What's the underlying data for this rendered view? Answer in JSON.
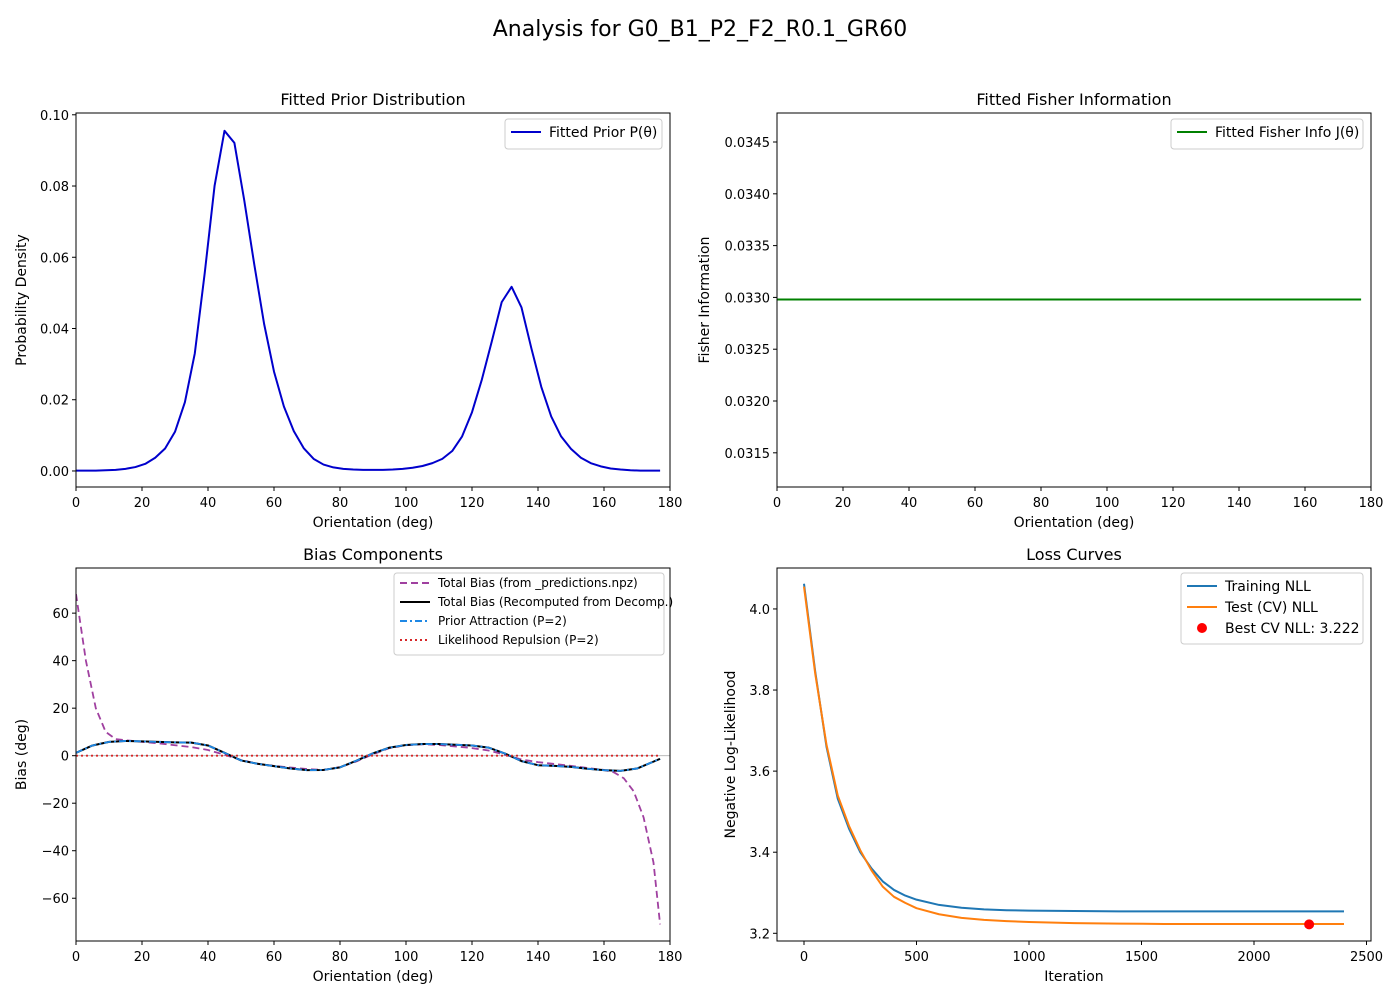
{
  "figure_title": "Analysis for G0_B1_P2_F2_R0.1_GR60",
  "chart_data": [
    {
      "id": "prior",
      "type": "line",
      "title": "Fitted Prior Distribution",
      "xlabel": "Orientation (deg)",
      "ylabel": "Probability Density",
      "xlim": [
        0,
        180
      ],
      "ylim": [
        -0.0045,
        0.1005
      ],
      "xticks": [
        0,
        20,
        40,
        60,
        80,
        100,
        120,
        140,
        160,
        180
      ],
      "yticks": [
        0.0,
        0.02,
        0.04,
        0.06,
        0.08,
        0.1
      ],
      "ytick_labels": [
        "0.00",
        "0.02",
        "0.04",
        "0.06",
        "0.08",
        "0.10"
      ],
      "grid": false,
      "legend_position": "top-right",
      "series": [
        {
          "name": "Fitted Prior P(θ)",
          "color": "#0000cc",
          "style": "solid",
          "x": [
            0,
            3,
            6,
            9,
            12,
            15,
            18,
            21,
            24,
            27,
            30,
            33,
            36,
            39,
            42,
            45,
            48,
            51,
            54,
            57,
            60,
            63,
            66,
            69,
            72,
            75,
            78,
            81,
            84,
            87,
            90,
            93,
            96,
            99,
            102,
            105,
            108,
            111,
            114,
            117,
            120,
            123,
            126,
            129,
            132,
            135,
            138,
            141,
            144,
            147,
            150,
            153,
            156,
            159,
            162,
            165,
            168,
            171,
            174,
            177
          ],
          "y": [
            0.0001,
            0.0001,
            0.0001,
            0.0002,
            0.0003,
            0.0006,
            0.0011,
            0.002,
            0.0037,
            0.0063,
            0.011,
            0.0193,
            0.033,
            0.0555,
            0.0801,
            0.0955,
            0.0921,
            0.0759,
            0.0581,
            0.0413,
            0.0279,
            0.0181,
            0.0112,
            0.0064,
            0.0034,
            0.0018,
            0.001,
            0.0006,
            0.0004,
            0.0003,
            0.0003,
            0.0003,
            0.0004,
            0.0006,
            0.0009,
            0.0014,
            0.0022,
            0.0034,
            0.0056,
            0.0097,
            0.0165,
            0.0257,
            0.0364,
            0.0474,
            0.0517,
            0.0459,
            0.0344,
            0.0236,
            0.0153,
            0.0097,
            0.0062,
            0.0037,
            0.0022,
            0.0013,
            0.0007,
            0.0004,
            0.0002,
            0.0001,
            0.0001,
            0.0001
          ]
        }
      ]
    },
    {
      "id": "fisher",
      "type": "line",
      "title": "Fitted Fisher Information",
      "xlabel": "Orientation (deg)",
      "ylabel": "Fisher Information",
      "xlim": [
        0,
        180
      ],
      "ylim": [
        0.03117,
        0.03478
      ],
      "xticks": [
        0,
        20,
        40,
        60,
        80,
        100,
        120,
        140,
        160,
        180
      ],
      "yticks": [
        0.0315,
        0.032,
        0.0325,
        0.033,
        0.0335,
        0.034,
        0.0345
      ],
      "ytick_labels": [
        "0.0315",
        "0.0320",
        "0.0325",
        "0.0330",
        "0.0335",
        "0.0340",
        "0.0345"
      ],
      "grid": false,
      "legend_position": "top-right",
      "series": [
        {
          "name": "Fitted Fisher Info J(θ)",
          "color": "#008000",
          "style": "solid",
          "x": [
            0,
            177
          ],
          "y": [
            0.03298,
            0.03298
          ]
        }
      ]
    },
    {
      "id": "bias",
      "type": "line",
      "title": "Bias Components",
      "xlabel": "Orientation (deg)",
      "ylabel": "Bias (deg)",
      "xlim": [
        0,
        180
      ],
      "ylim": [
        -78,
        79
      ],
      "xticks": [
        0,
        20,
        40,
        60,
        80,
        100,
        120,
        140,
        160,
        180
      ],
      "yticks": [
        -60,
        -40,
        -20,
        0,
        20,
        40,
        60
      ],
      "ytick_labels": [
        "−60",
        "−40",
        "−20",
        "0",
        "20",
        "40",
        "60"
      ],
      "grid": false,
      "zero_line": true,
      "legend_position": "top-right",
      "legend_font_small": true,
      "series": [
        {
          "name": "Total Bias (from _predictions.npz)",
          "color": "#a040a0",
          "style": "dashed",
          "x": [
            0,
            3,
            6,
            9,
            12,
            15,
            20,
            25,
            30,
            35,
            40,
            45,
            50,
            55,
            60,
            65,
            70,
            75,
            80,
            85,
            90,
            95,
            100,
            105,
            110,
            115,
            120,
            125,
            130,
            135,
            140,
            145,
            150,
            155,
            160,
            163,
            166,
            169,
            172,
            175,
            177
          ],
          "y": [
            68,
            40,
            20,
            10,
            7,
            6.5,
            5.8,
            5.2,
            4.4,
            3.6,
            2.4,
            0.4,
            -1.8,
            -3.4,
            -4.3,
            -5,
            -5.6,
            -6,
            -4.8,
            -2.4,
            0.6,
            3.2,
            4.4,
            4.8,
            4.5,
            3.9,
            3.2,
            2.2,
            0.4,
            -1.6,
            -2.7,
            -3.5,
            -4.3,
            -5.2,
            -6,
            -7,
            -9.5,
            -15,
            -26,
            -45,
            -71
          ]
        },
        {
          "name": "Total Bias (Recomputed from Decomp.)",
          "color": "#000000",
          "style": "solid",
          "x": [
            0,
            5,
            10,
            15,
            20,
            25,
            30,
            35,
            40,
            45,
            50,
            55,
            60,
            65,
            70,
            75,
            80,
            85,
            90,
            95,
            100,
            105,
            110,
            115,
            120,
            125,
            130,
            135,
            140,
            145,
            150,
            155,
            160,
            165,
            170,
            175,
            177
          ],
          "y": [
            1.2,
            4.3,
            5.8,
            6.2,
            6,
            5.8,
            5.6,
            5.5,
            4.3,
            1.2,
            -2,
            -3.4,
            -4.4,
            -5.4,
            -6.1,
            -6,
            -4.9,
            -2.1,
            1,
            3.4,
            4.5,
            4.9,
            4.9,
            4.6,
            4.3,
            3.4,
            0.9,
            -2.3,
            -4,
            -4.3,
            -4.7,
            -5.5,
            -6.1,
            -6.4,
            -5.4,
            -2.5,
            -1.3
          ]
        },
        {
          "name": "Prior Attraction (P=2)",
          "color": "#1e88e5",
          "style": "dashdot",
          "x": [
            0,
            5,
            10,
            15,
            20,
            25,
            30,
            35,
            40,
            45,
            50,
            55,
            60,
            65,
            70,
            75,
            80,
            85,
            90,
            95,
            100,
            105,
            110,
            115,
            120,
            125,
            130,
            135,
            140,
            145,
            150,
            155,
            160,
            165,
            170,
            175,
            177
          ],
          "y": [
            1.2,
            4.3,
            5.8,
            6.2,
            6,
            5.8,
            5.6,
            5.5,
            4.3,
            1.2,
            -2,
            -3.4,
            -4.4,
            -5.4,
            -6.1,
            -6,
            -4.9,
            -2.1,
            1,
            3.4,
            4.5,
            4.9,
            4.9,
            4.6,
            4.3,
            3.4,
            0.9,
            -2.3,
            -4,
            -4.3,
            -4.7,
            -5.5,
            -6.1,
            -6.4,
            -5.4,
            -2.5,
            -1.3
          ]
        },
        {
          "name": "Likelihood Repulsion (P=2)",
          "color": "#d62728",
          "style": "dotted",
          "x": [
            0,
            177
          ],
          "y": [
            0,
            0
          ]
        }
      ]
    },
    {
      "id": "loss",
      "type": "line",
      "title": "Loss Curves",
      "xlabel": "Iteration",
      "ylabel": "Negative Log-Likelihood",
      "xlim": [
        -120,
        2520
      ],
      "ylim": [
        3.181,
        4.101
      ],
      "xticks": [
        0,
        500,
        1000,
        1500,
        2000,
        2500
      ],
      "yticks": [
        3.2,
        3.4,
        3.6,
        3.8,
        4.0
      ],
      "ytick_labels": [
        "3.2",
        "3.4",
        "3.6",
        "3.8",
        "4.0"
      ],
      "grid": false,
      "legend_position": "top-right",
      "series": [
        {
          "name": "Training NLL",
          "color": "#1f77b4",
          "style": "solid",
          "x": [
            0,
            50,
            100,
            150,
            200,
            250,
            300,
            350,
            400,
            450,
            500,
            600,
            700,
            800,
            900,
            1000,
            1200,
            1400,
            1600,
            1800,
            2000,
            2200,
            2400
          ],
          "y": [
            4.062,
            3.845,
            3.66,
            3.532,
            3.458,
            3.4,
            3.36,
            3.328,
            3.307,
            3.293,
            3.283,
            3.27,
            3.263,
            3.259,
            3.257,
            3.256,
            3.255,
            3.254,
            3.254,
            3.254,
            3.254,
            3.254,
            3.254
          ]
        },
        {
          "name": "Test (CV) NLL",
          "color": "#ff7f0e",
          "style": "solid",
          "x": [
            0,
            50,
            100,
            150,
            200,
            250,
            300,
            350,
            400,
            450,
            500,
            600,
            700,
            800,
            900,
            1000,
            1200,
            1400,
            1600,
            1800,
            2000,
            2200,
            2400
          ],
          "y": [
            4.055,
            3.84,
            3.665,
            3.54,
            3.465,
            3.405,
            3.355,
            3.315,
            3.29,
            3.275,
            3.262,
            3.247,
            3.238,
            3.233,
            3.23,
            3.228,
            3.225,
            3.224,
            3.223,
            3.223,
            3.223,
            3.223,
            3.223
          ]
        }
      ],
      "marker": {
        "name": "Best CV NLL: 3.222",
        "color": "#ff0000",
        "x": 2245,
        "y": 3.222
      }
    }
  ]
}
